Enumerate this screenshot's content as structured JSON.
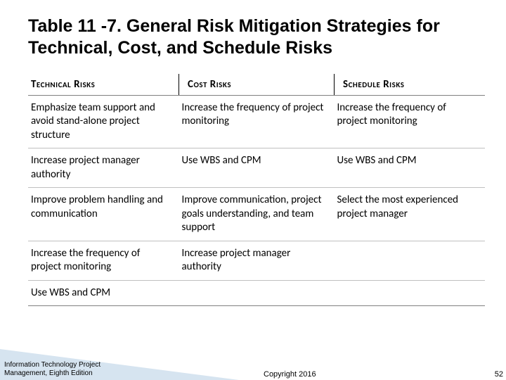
{
  "title": "Table 11 -7. General Risk Mitigation Strategies for Technical, Cost, and Schedule Risks",
  "table": {
    "type": "table",
    "columns": [
      {
        "label": "Technical Risks",
        "width_pct": 33
      },
      {
        "label": "Cost Risks",
        "width_pct": 34
      },
      {
        "label": "Schedule Risks",
        "width_pct": 33
      }
    ],
    "rows": [
      [
        "Emphasize team support and avoid stand-alone project structure",
        "Increase the frequency of project monitoring",
        "Increase the frequency of project monitoring"
      ],
      [
        "Increase project manager authority",
        "Use WBS and CPM",
        "Use WBS and CPM"
      ],
      [
        "Improve problem handling and communication",
        "Improve communication, project goals understanding, and team support",
        "Select the most experienced project manager"
      ],
      [
        "Increase the frequency of project monitoring",
        "Increase project manager authority",
        ""
      ],
      [
        "Use WBS and CPM",
        "",
        ""
      ]
    ],
    "header_border_color": "#808080",
    "row_border_color": "#c0c0c0",
    "header_fontsize": 15,
    "cell_fontsize": 15,
    "text_color": "#000000",
    "background_color": "#ffffff"
  },
  "footer": {
    "source_line1": "Information Technology Project",
    "source_line2": "Management, Eighth Edition",
    "copyright": "Copyright 2016",
    "page_number": "52",
    "accent_color": "#d6e4f0",
    "text_color": "#000000"
  }
}
